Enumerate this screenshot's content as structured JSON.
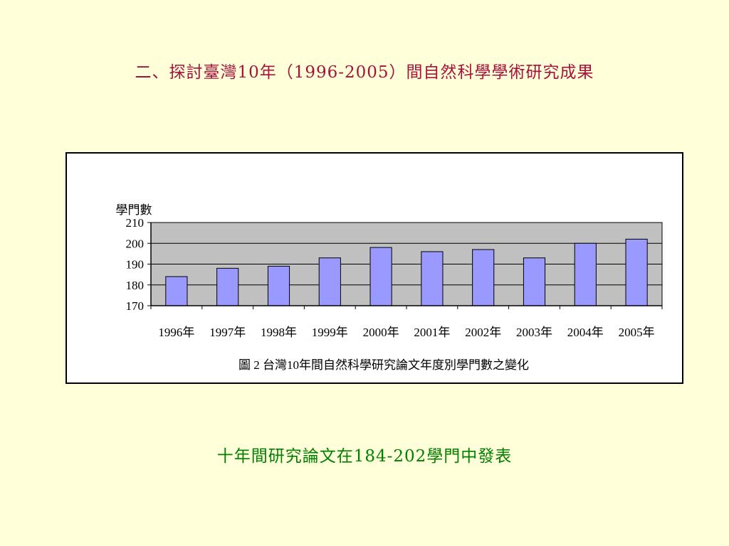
{
  "slide": {
    "title": "二、探討臺灣10年（1996-2005）間自然科學學術研究成果",
    "summary": "十年間研究論文在184-202學門中發表"
  },
  "colors": {
    "title": "#a8123a",
    "summary": "#008000",
    "background": "#ffffd9",
    "plot_area": "#c0c0c0",
    "bar_fill": "#9999ff"
  },
  "chart_data": {
    "type": "bar",
    "title": "圖 2 台灣10年間自然科學研究論文年度別學門數之變化",
    "xlabel": "",
    "ylabel": "學門數",
    "ylim": [
      170,
      210
    ],
    "yticks": [
      "170",
      "180",
      "190",
      "200",
      "210"
    ],
    "grid": true,
    "legend": "none",
    "categories": [
      "1996年",
      "1997年",
      "1998年",
      "1999年",
      "2000年",
      "2001年",
      "2002年",
      "2003年",
      "2004年",
      "2005年"
    ],
    "values": [
      184,
      188,
      189,
      193,
      198,
      196,
      197,
      193,
      200,
      202
    ]
  }
}
